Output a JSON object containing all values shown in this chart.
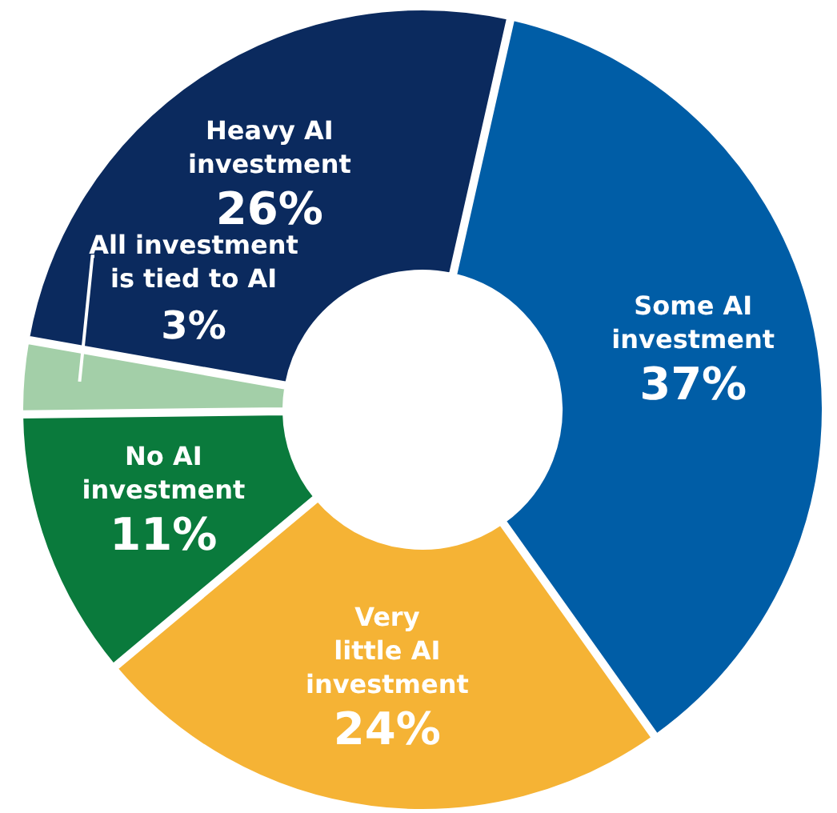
{
  "chart_data": {
    "type": "donut",
    "categories": [
      "Some AI investment",
      "Very little AI investment",
      "No AI investment",
      "All investment is tied to AI",
      "Heavy AI investment"
    ],
    "values": [
      37,
      24,
      11,
      3,
      26
    ],
    "value_labels": [
      "37%",
      "24%",
      "11%",
      "3%",
      "26%"
    ],
    "colors": [
      "#005da6",
      "#f5b335",
      "#0a7a3c",
      "#a3cfa8",
      "#0b2a5e"
    ]
  }
}
